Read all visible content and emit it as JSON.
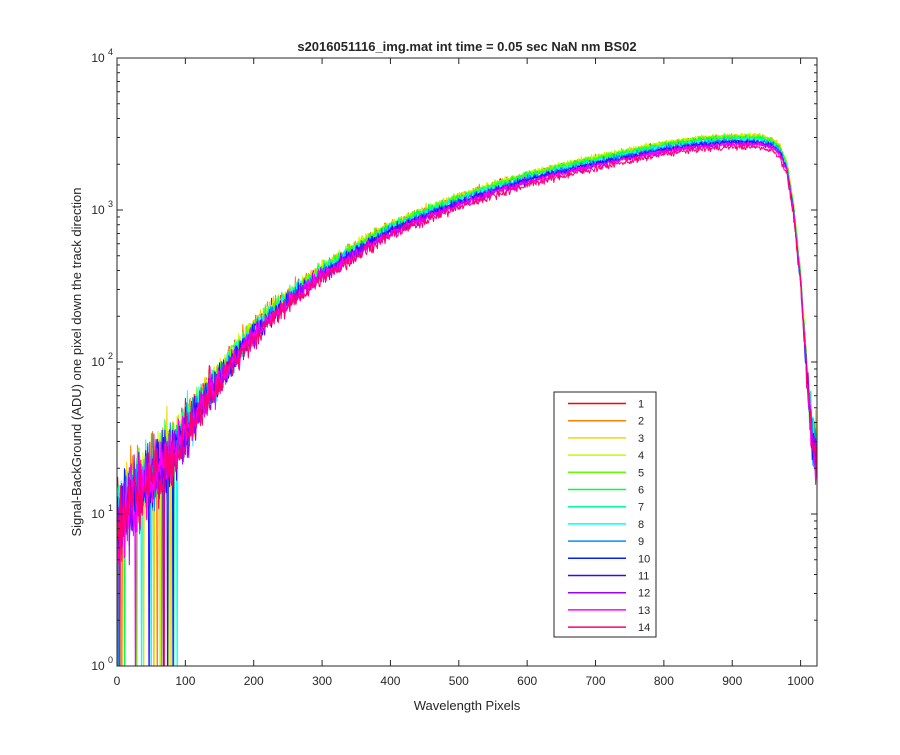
{
  "chart_data": {
    "type": "line",
    "title": "s2016051116_img.mat int time = 0.05 sec  NaN nm BS02",
    "xlabel": "Wavelength Pixels",
    "ylabel": "Signal-BackGround (ADU) one pixel down the track direction",
    "xlim": [
      0,
      1024
    ],
    "ylim": [
      1,
      10000
    ],
    "yscale": "log",
    "grid": false,
    "legend_position": "inside-lower-right",
    "x_ticks": [
      0,
      100,
      200,
      300,
      400,
      500,
      600,
      700,
      800,
      900,
      1000
    ],
    "x_tick_labels": [
      "0",
      "100",
      "200",
      "300",
      "400",
      "500",
      "600",
      "700",
      "800",
      "900",
      "1000"
    ],
    "y_ticks": [
      1,
      10,
      100,
      1000,
      10000
    ],
    "y_tick_labels": [
      {
        "base": "10",
        "exp": "0"
      },
      {
        "base": "10",
        "exp": "1"
      },
      {
        "base": "10",
        "exp": "2"
      },
      {
        "base": "10",
        "exp": "3"
      },
      {
        "base": "10",
        "exp": "4"
      }
    ],
    "envelope": {
      "x": [
        0,
        20,
        40,
        60,
        80,
        100,
        125,
        150,
        175,
        200,
        250,
        300,
        350,
        400,
        450,
        500,
        550,
        600,
        650,
        700,
        750,
        800,
        850,
        900,
        940,
        960,
        970,
        980,
        990,
        1000,
        1010,
        1018,
        1024
      ],
      "y": [
        9,
        13,
        16,
        20,
        26,
        36,
        55,
        80,
        115,
        160,
        260,
        390,
        550,
        750,
        940,
        1150,
        1380,
        1620,
        1850,
        2080,
        2320,
        2580,
        2780,
        2880,
        2870,
        2720,
        2450,
        1900,
        1000,
        350,
        75,
        30,
        25
      ]
    },
    "series": [
      {
        "name": "1",
        "color": "#ff0000",
        "scale": 1.05
      },
      {
        "name": "2",
        "color": "#ff8000",
        "scale": 1.06
      },
      {
        "name": "3",
        "color": "#ffd000",
        "scale": 1.07
      },
      {
        "name": "4",
        "color": "#c0ff00",
        "scale": 1.07
      },
      {
        "name": "5",
        "color": "#60ff00",
        "scale": 1.06
      },
      {
        "name": "6",
        "color": "#00ff40",
        "scale": 1.04
      },
      {
        "name": "7",
        "color": "#00ff9c",
        "scale": 1.02
      },
      {
        "name": "8",
        "color": "#00ffff",
        "scale": 1.0
      },
      {
        "name": "9",
        "color": "#0090ff",
        "scale": 0.99
      },
      {
        "name": "10",
        "color": "#0020ff",
        "scale": 0.97
      },
      {
        "name": "11",
        "color": "#4000ff",
        "scale": 0.96
      },
      {
        "name": "12",
        "color": "#a000ff",
        "scale": 0.95
      },
      {
        "name": "13",
        "color": "#ff00ff",
        "scale": 0.94
      },
      {
        "name": "14",
        "color": "#ff0070",
        "scale": 0.9
      }
    ]
  }
}
